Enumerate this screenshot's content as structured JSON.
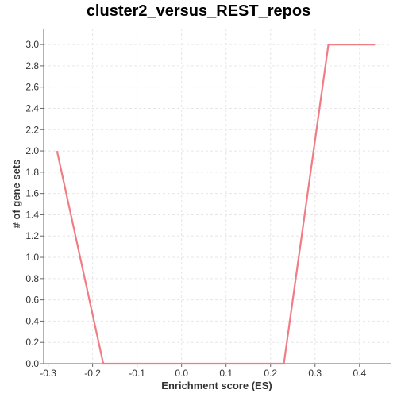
{
  "chart_data": {
    "type": "line",
    "title": "cluster2_versus_REST_repos",
    "xlabel": "Enrichment score (ES)",
    "ylabel": "# of gene sets",
    "xlim": [
      -0.31,
      0.47
    ],
    "ylim": [
      0.0,
      3.15
    ],
    "x_ticks": [
      -0.3,
      -0.2,
      -0.1,
      0.0,
      0.1,
      0.2,
      0.3,
      0.4
    ],
    "x_tick_labels": [
      "-0.3",
      "-0.2",
      "-0.1",
      "0.0",
      "0.1",
      "0.2",
      "0.3",
      "0.4"
    ],
    "y_ticks": [
      0.0,
      0.2,
      0.4,
      0.6,
      0.8,
      1.0,
      1.2,
      1.4,
      1.6,
      1.8,
      2.0,
      2.2,
      2.4,
      2.6,
      2.8,
      3.0
    ],
    "y_tick_labels": [
      "0.0",
      "0.2",
      "0.4",
      "0.6",
      "0.8",
      "1.0",
      "1.2",
      "1.4",
      "1.6",
      "1.8",
      "2.0",
      "2.2",
      "2.4",
      "2.6",
      "2.8",
      "3.0"
    ],
    "grid": true,
    "series": [
      {
        "color": "#f07c84",
        "x": [
          -0.28,
          -0.176,
          0.23,
          0.33,
          0.435
        ],
        "y": [
          2.0,
          0.0,
          0.0,
          3.0,
          3.0
        ]
      }
    ]
  }
}
